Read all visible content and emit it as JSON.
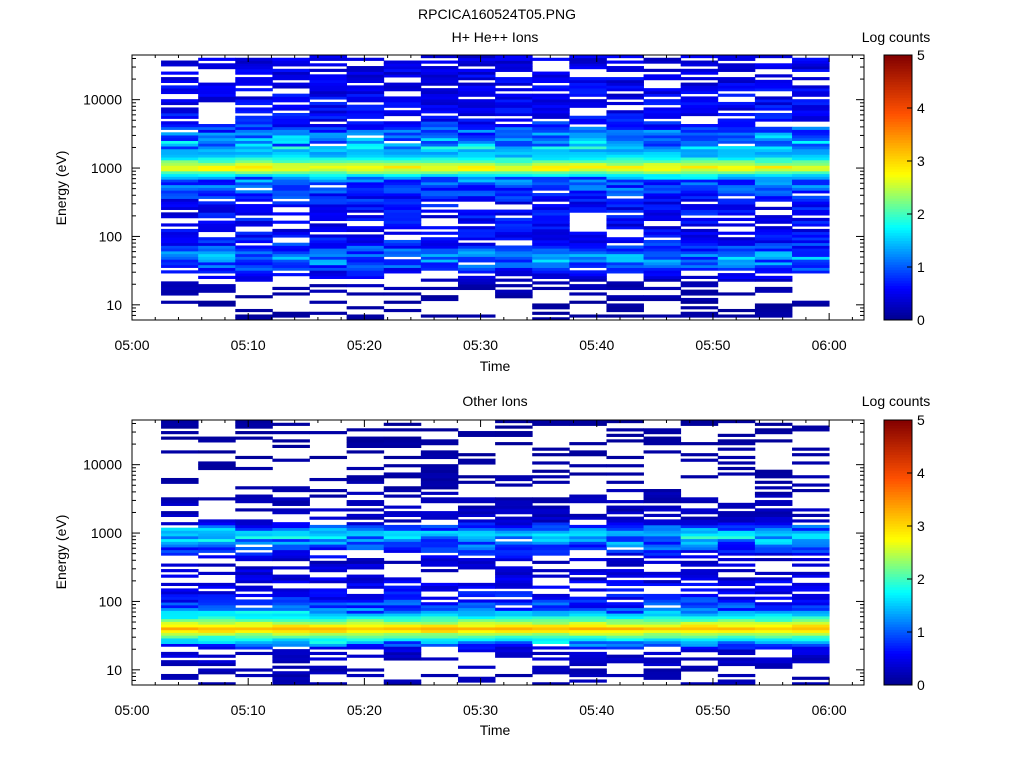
{
  "figure": {
    "title": "RPCICA160524T05.PNG"
  },
  "chart_data": [
    {
      "type": "heatmap",
      "title": "H+ He++ Ions",
      "xlabel": "Time",
      "ylabel": "Energy (eV)",
      "yscale": "log",
      "xlim": [
        "05:00",
        "06:03"
      ],
      "ylim": [
        6,
        45000
      ],
      "x_ticks": [
        "05:00",
        "05:10",
        "05:20",
        "05:30",
        "05:40",
        "05:50",
        "06:00"
      ],
      "y_ticks": [
        "10",
        "100",
        "1000",
        "10000"
      ],
      "colorbar": {
        "label": "Log counts",
        "range": [
          0,
          5
        ],
        "ticks": [
          "0",
          "1",
          "2",
          "3",
          "4",
          "5"
        ]
      },
      "time_bins": {
        "start": "05:02:30",
        "end": "06:00:00",
        "count": 18
      },
      "energy_bins": {
        "count": 96,
        "min": 6,
        "max": 45000
      },
      "profile": [
        {
          "energy": 10,
          "log_counts": 0.1
        },
        {
          "energy": 20,
          "log_counts": 0.2
        },
        {
          "energy": 30,
          "log_counts": 0.6
        },
        {
          "energy": 45,
          "log_counts": 1.2
        },
        {
          "energy": 60,
          "log_counts": 1.0
        },
        {
          "energy": 100,
          "log_counts": 0.55
        },
        {
          "energy": 300,
          "log_counts": 0.6
        },
        {
          "energy": 700,
          "log_counts": 1.1
        },
        {
          "energy": 1000,
          "log_counts": 2.9
        },
        {
          "energy": 1500,
          "log_counts": 1.5
        },
        {
          "energy": 2500,
          "log_counts": 1.3
        },
        {
          "energy": 5000,
          "log_counts": 0.6
        },
        {
          "energy": 10000,
          "log_counts": 0.55
        },
        {
          "energy": 40000,
          "log_counts": 0.45
        }
      ]
    },
    {
      "type": "heatmap",
      "title": "Other Ions",
      "xlabel": "Time",
      "ylabel": "Energy (eV)",
      "yscale": "log",
      "xlim": [
        "05:00",
        "06:03"
      ],
      "ylim": [
        6,
        45000
      ],
      "x_ticks": [
        "05:00",
        "05:10",
        "05:20",
        "05:30",
        "05:40",
        "05:50",
        "06:00"
      ],
      "y_ticks": [
        "10",
        "100",
        "1000",
        "10000"
      ],
      "colorbar": {
        "label": "Log counts",
        "range": [
          0,
          5
        ],
        "ticks": [
          "0",
          "1",
          "2",
          "3",
          "4",
          "5"
        ]
      },
      "time_bins": {
        "start": "05:02:30",
        "end": "06:00:00",
        "count": 18
      },
      "energy_bins": {
        "count": 96,
        "min": 6,
        "max": 45000
      },
      "profile": [
        {
          "energy": 10,
          "log_counts": 0.2
        },
        {
          "energy": 20,
          "log_counts": 0.4
        },
        {
          "energy": 30,
          "log_counts": 2.0
        },
        {
          "energy": 40,
          "log_counts": 3.2
        },
        {
          "energy": 55,
          "log_counts": 2.0
        },
        {
          "energy": 80,
          "log_counts": 0.9
        },
        {
          "energy": 150,
          "log_counts": 0.5
        },
        {
          "energy": 400,
          "log_counts": 0.3
        },
        {
          "energy": 1000,
          "log_counts": 1.6
        },
        {
          "energy": 1500,
          "log_counts": 0.3
        },
        {
          "energy": 5000,
          "log_counts": 0.15
        },
        {
          "energy": 20000,
          "log_counts": 0.1
        }
      ]
    }
  ]
}
